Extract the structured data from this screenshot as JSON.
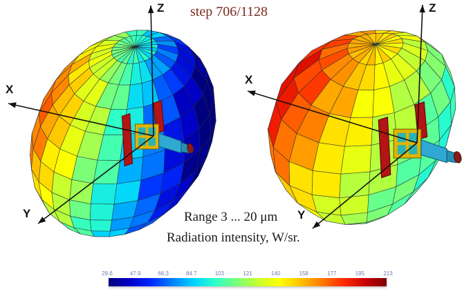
{
  "annotations": {
    "step": "step 706/1128",
    "range": "Range 3 ... 20 μm",
    "intensity": "Radiation intensity, W/sr."
  },
  "axes": {
    "x": "X",
    "y": "Y",
    "z": "Z"
  },
  "colorbar": {
    "min": 29.6,
    "max": 213,
    "ticks": [
      "29.6",
      "47.9",
      "66.3",
      "84.7",
      "103",
      "121",
      "140",
      "158",
      "177",
      "195",
      "213"
    ],
    "colors": [
      "#00007f",
      "#0000c8",
      "#0028ff",
      "#0080ff",
      "#00d4ff",
      "#2cffc8",
      "#7aff7a",
      "#c8ff2c",
      "#ffff00",
      "#ffc000",
      "#ff7800",
      "#ff2800",
      "#c80000",
      "#7f0000"
    ]
  },
  "style_colors": {
    "mesh_line": "#222b36",
    "axis": "#111111",
    "step_text": "#7b2b20",
    "caption_text": "#1a1a1a",
    "tick_text": "#6b79ad"
  },
  "satellite": {
    "panel": "#b31414",
    "panel_edge": "#5a0808",
    "body_frame": "#e2b400",
    "body_edge": "#7a5c00",
    "body_panel": "#2ab4b4",
    "cylinder": "#2fa9d2",
    "nose": "#2391b4",
    "cylinder_edge": "#0e5a74",
    "cap": "#8c1a1a",
    "cap_edge": "#4d0d0d"
  },
  "chart_data": {
    "type": "heatmap",
    "title": "Radiation intensity, W/sr.",
    "subtitle": "Range 3 ... 20 μm",
    "step_annotation": "step 706/1128",
    "unit": "W/sr",
    "wavelength_range_um": [
      3,
      20
    ],
    "value_range": [
      29.6,
      213
    ],
    "colorbar_ticks": [
      29.6,
      47.9,
      66.3,
      84.7,
      103,
      121,
      140,
      158,
      177,
      195,
      213
    ],
    "legend_position": "bottom",
    "grid": true,
    "plots": [
      {
        "position": "left",
        "form": "ellipsoidal 3-D angular radiation-intensity surface with satellite model at origin",
        "axes": [
          "X",
          "Y",
          "Z"
        ],
        "hot_region": "left/-X side, red-orange, ~177-213 W/sr",
        "cold_region": "right side, deep blue, ~30-48 W/sr"
      },
      {
        "position": "right",
        "form": "lumpy closed 3-D angular radiation-intensity surface with satellite model at origin",
        "axes": [
          "X",
          "Y",
          "Z"
        ],
        "hot_region": "upper-left, red, ~195-213 W/sr",
        "cold_region": "right cut face, teal-cyan, ~66-103 W/sr"
      }
    ]
  }
}
